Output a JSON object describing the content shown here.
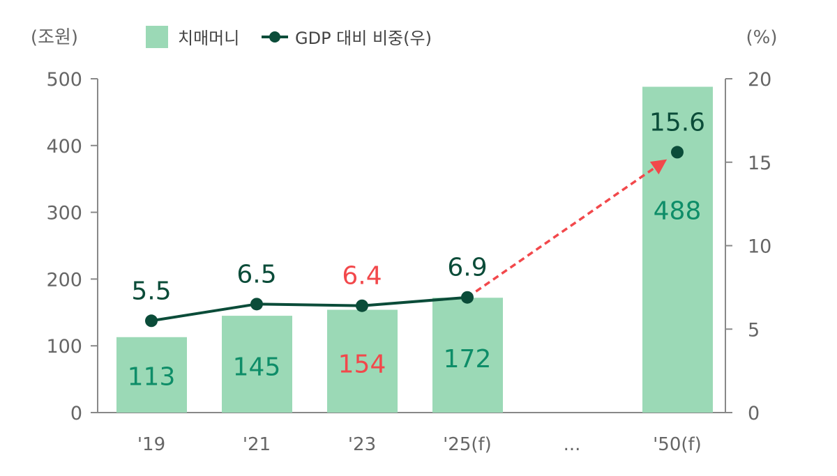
{
  "chart_data": {
    "type": "bar+line",
    "categories": [
      "'19",
      "'21",
      "'23",
      "'25(f)",
      "...",
      "'50(f)"
    ],
    "left_axis": {
      "label": "(조원)",
      "range": [
        0,
        500
      ],
      "ticks": [
        "0",
        "100",
        "200",
        "300",
        "400",
        "500"
      ]
    },
    "right_axis": {
      "label": "(%)",
      "range": [
        0,
        20
      ],
      "ticks": [
        "0",
        "5",
        "10",
        "15",
        "20"
      ]
    },
    "legend": {
      "placement": "top",
      "items": [
        {
          "name": "치매머니",
          "kind": "bar"
        },
        {
          "name": "GDP 대비 비중(우)",
          "kind": "line"
        }
      ]
    },
    "series": [
      {
        "name": "치매머니",
        "type": "bar",
        "axis": "left",
        "values": [
          113,
          145,
          154,
          172,
          null,
          488
        ],
        "labels": [
          "113",
          "145",
          "154",
          "172",
          "",
          "488"
        ],
        "highlight_index": 2
      },
      {
        "name": "GDP 대비 비중(우)",
        "type": "line",
        "axis": "right",
        "values": [
          5.5,
          6.5,
          6.4,
          6.9,
          null,
          15.6
        ],
        "labels": [
          "5.5",
          "6.5",
          "6.4",
          "6.9",
          "",
          "15.6"
        ],
        "highlight_index": 2,
        "projection": "dashed arrow from '25(f) to '50(f)"
      }
    ],
    "grid": false
  },
  "colors": {
    "bar": "#9bd9b6",
    "line": "#0b4c39",
    "bar_label": "#0e8d68",
    "highlight": "#f2484b",
    "axis_text": "#666666",
    "axis_line": "#888888"
  }
}
